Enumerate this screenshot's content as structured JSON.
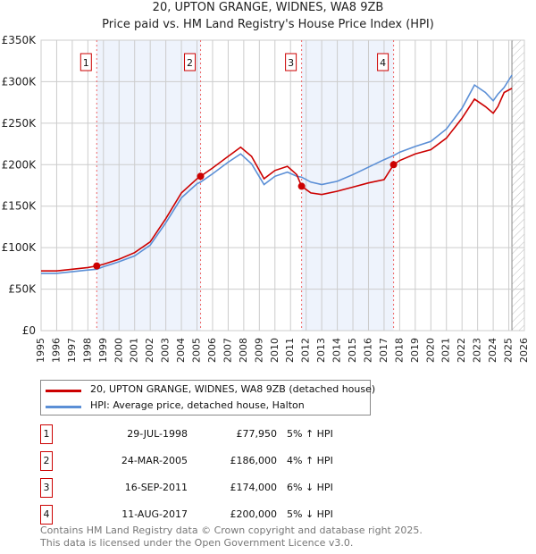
{
  "chart_data": {
    "type": "line",
    "title": "20, UPTON GRANGE, WIDNES, WA8 9ZB",
    "subtitle": "Price paid vs. HM Land Registry's House Price Index (HPI)",
    "xlim": [
      1995,
      2026
    ],
    "ylim": [
      0,
      350000
    ],
    "x_ticks": [
      "1995",
      "1996",
      "1997",
      "1998",
      "1999",
      "2000",
      "2001",
      "2002",
      "2003",
      "2004",
      "2005",
      "2006",
      "2007",
      "2008",
      "2009",
      "2010",
      "2011",
      "2012",
      "2013",
      "2014",
      "2015",
      "2016",
      "2017",
      "2018",
      "2019",
      "2020",
      "2021",
      "2022",
      "2023",
      "2024",
      "2025",
      "2026"
    ],
    "y_ticks": [
      {
        "v": 0,
        "l": "£0"
      },
      {
        "v": 50000,
        "l": "£50K"
      },
      {
        "v": 100000,
        "l": "£100K"
      },
      {
        "v": 150000,
        "l": "£150K"
      },
      {
        "v": 200000,
        "l": "£200K"
      },
      {
        "v": 250000,
        "l": "£250K"
      },
      {
        "v": 300000,
        "l": "£300K"
      },
      {
        "v": 350000,
        "l": "£350K"
      }
    ],
    "grid": true,
    "shaded_ranges": [
      [
        1998.57,
        2005.23
      ],
      [
        2011.71,
        2017.61
      ]
    ],
    "forecast_from": 2025.2,
    "series": [
      {
        "name": "20, UPTON GRANGE, WIDNES, WA8 9ZB (detached house)",
        "color": "#cc0000",
        "x": [
          1995,
          1996,
          1997,
          1998,
          1998.57,
          1999,
          2000,
          2001,
          2002,
          2003,
          2004,
          2005,
          2005.23,
          2006,
          2007,
          2007.8,
          2008.5,
          2009.3,
          2010,
          2010.8,
          2011.4,
          2011.71,
          2012.3,
          2013,
          2014,
          2015,
          2016,
          2017,
          2017.61,
          2018,
          2019,
          2020,
          2021,
          2022,
          2022.8,
          2023.5,
          2024,
          2024.3,
          2024.7,
          2025.2
        ],
        "y": [
          72000,
          72000,
          74000,
          76000,
          77950,
          80000,
          86000,
          94000,
          107000,
          135000,
          166000,
          183000,
          186000,
          196000,
          210000,
          221000,
          210000,
          183000,
          193000,
          198000,
          188000,
          174000,
          166000,
          164000,
          168000,
          173000,
          178000,
          182000,
          200000,
          205000,
          213000,
          218000,
          232000,
          256000,
          279000,
          270000,
          262000,
          270000,
          287000,
          292000
        ]
      },
      {
        "name": "HPI: Average price, detached house, Halton",
        "color": "#5b8fd6",
        "x": [
          1995,
          1996,
          1997,
          1998,
          1998.57,
          1999,
          2000,
          2001,
          2002,
          2003,
          2004,
          2005,
          2005.23,
          2006,
          2007,
          2007.8,
          2008.5,
          2009.3,
          2010,
          2010.8,
          2011.4,
          2011.71,
          2012.3,
          2013,
          2014,
          2015,
          2016,
          2017,
          2017.61,
          2018,
          2019,
          2020,
          2021,
          2022,
          2022.8,
          2023.5,
          2024,
          2024.3,
          2024.7,
          2025.2
        ],
        "y": [
          69000,
          69000,
          71000,
          73000,
          74000,
          77000,
          83000,
          90000,
          103000,
          130000,
          160000,
          177000,
          179000,
          189000,
          203000,
          213000,
          201000,
          176000,
          186000,
          191000,
          186000,
          185000,
          179000,
          176000,
          180000,
          188000,
          197000,
          206000,
          211000,
          215000,
          222000,
          228000,
          243000,
          268000,
          296000,
          287000,
          277000,
          285000,
          293000,
          308000
        ]
      }
    ],
    "sales": [
      {
        "label": "1",
        "date": "29-JUL-1998",
        "x": 1998.57,
        "price": "£77,950",
        "value": 77950,
        "hpi": "5% ↑ HPI"
      },
      {
        "label": "2",
        "date": "24-MAR-2005",
        "x": 2005.23,
        "price": "£186,000",
        "value": 186000,
        "hpi": "4% ↑ HPI"
      },
      {
        "label": "3",
        "date": "16-SEP-2011",
        "x": 2011.71,
        "price": "£174,000",
        "value": 174000,
        "hpi": "6% ↓ HPI"
      },
      {
        "label": "4",
        "date": "11-AUG-2017",
        "x": 2017.61,
        "price": "£200,000",
        "value": 200000,
        "hpi": "5% ↓ HPI"
      }
    ],
    "legend_placement": "below"
  },
  "footer": {
    "line1": "Contains HM Land Registry data © Crown copyright and database right 2025.",
    "line2": "This data is licensed under the Open Government Licence v3.0."
  }
}
